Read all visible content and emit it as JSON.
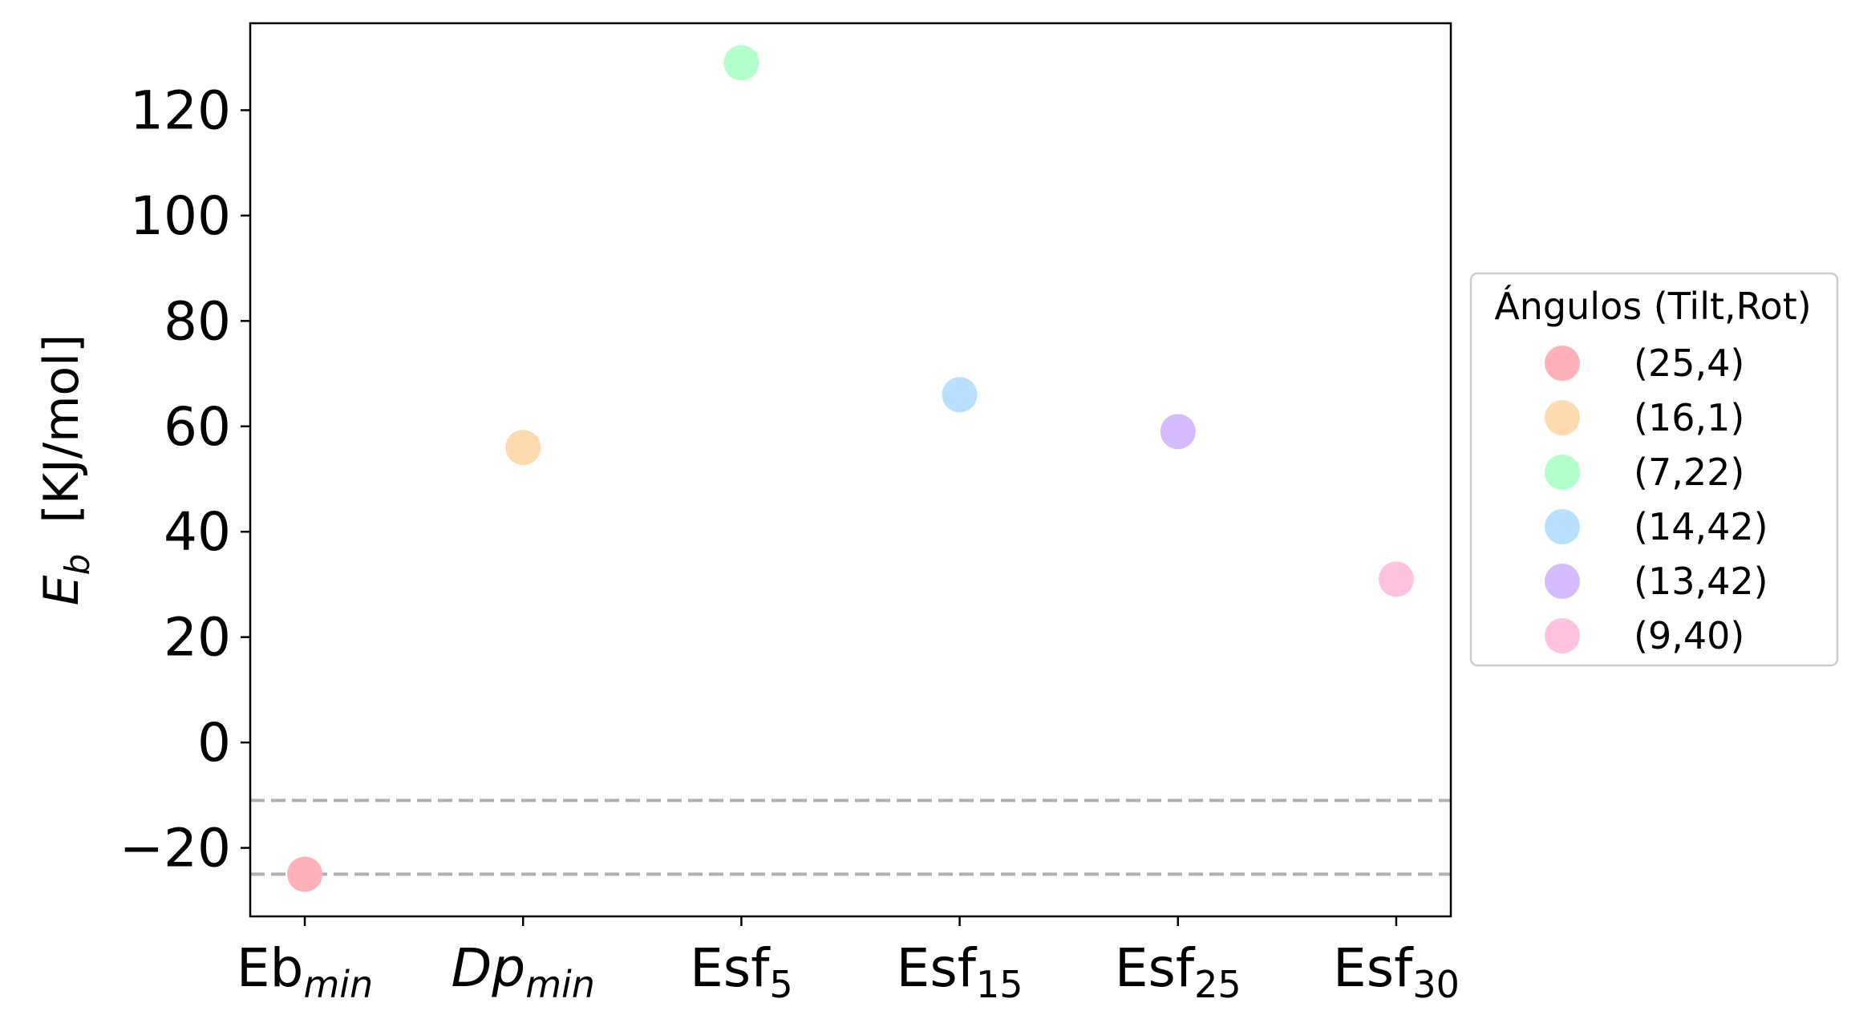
{
  "chart_data": {
    "type": "scatter",
    "categories": [
      {
        "base": "Eb",
        "sub": "min",
        "italic_base": false
      },
      {
        "base": "Dp",
        "sub": "min",
        "italic_base": true
      },
      {
        "base": "Esf",
        "sub": "5",
        "italic_base": false
      },
      {
        "base": "Esf",
        "sub": "15",
        "italic_base": false
      },
      {
        "base": "Esf",
        "sub": "25",
        "italic_base": false
      },
      {
        "base": "Esf",
        "sub": "30",
        "italic_base": false
      }
    ],
    "series": [
      {
        "name": "(25,4)",
        "x": 0,
        "y": -25,
        "color": "#ffb0b8"
      },
      {
        "name": "(16,1)",
        "x": 1,
        "y": 56,
        "color": "#ffd9b0"
      },
      {
        "name": "(7,22)",
        "x": 2,
        "y": 129,
        "color": "#b3ffcc"
      },
      {
        "name": "(14,42)",
        "x": 3,
        "y": 66,
        "color": "#b8e0ff"
      },
      {
        "name": "(13,42)",
        "x": 4,
        "y": 59,
        "color": "#d6bbff"
      },
      {
        "name": "(9,40)",
        "x": 5,
        "y": 31,
        "color": "#ffc2e0"
      }
    ],
    "hlines": [
      {
        "y": -11,
        "style": "dashed",
        "color": "#b0b0b0"
      },
      {
        "y": -25,
        "style": "dashed",
        "color": "#b0b0b0"
      }
    ],
    "ylabel": {
      "symbol": "E",
      "sub": "b",
      "unit": "[KJ/mol]"
    },
    "yticks": [
      -20,
      0,
      20,
      40,
      60,
      80,
      100,
      120
    ],
    "ytick_labels": [
      "−20",
      "0",
      "20",
      "40",
      "60",
      "80",
      "100",
      "120"
    ],
    "ylim": [
      -33,
      136.5
    ],
    "xlim": [
      -0.25,
      5.25
    ],
    "legend": {
      "title": "Ángulos (Tilt,Rot)",
      "placement": "outside-right"
    },
    "grid": false
  }
}
